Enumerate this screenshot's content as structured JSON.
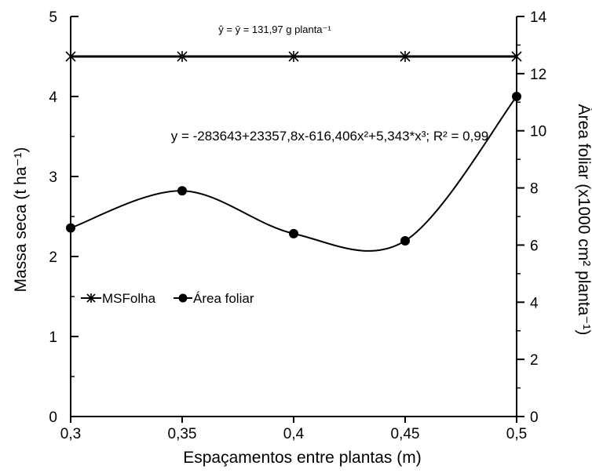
{
  "chart_data": {
    "type": "line",
    "title": "",
    "xlabel": "Espaçamentos entre plantas (m)",
    "ylabel_left": "Massa seca (t ha⁻¹)",
    "ylabel_right": "Área foliar (x1000 cm² planta⁻¹)",
    "x": [
      0.3,
      0.35,
      0.4,
      0.45,
      0.5
    ],
    "x_tick_labels": [
      "0,3",
      "0,35",
      "0,4",
      "0,45",
      "0,5"
    ],
    "xlim": [
      0.3,
      0.5
    ],
    "ylim_left": [
      0,
      5
    ],
    "y_left_ticks": [
      "0",
      "1",
      "2",
      "3",
      "4",
      "5"
    ],
    "ylim_right": [
      0,
      14
    ],
    "y_right_ticks": [
      "0",
      "2",
      "4",
      "6",
      "8",
      "10",
      "12",
      "14"
    ],
    "series": [
      {
        "name": "MSFolha",
        "axis": "left",
        "marker": "star",
        "values": [
          4.5,
          4.5,
          4.5,
          4.5,
          4.5
        ]
      },
      {
        "name": "Área foliar",
        "axis": "right",
        "marker": "circle",
        "values": [
          6.6,
          7.9,
          6.4,
          6.15,
          11.2
        ]
      }
    ],
    "annotations": {
      "msfolha_equation": "ŷ = ȳ = 131,97 g planta⁻¹",
      "area_equation": "y = -283643+23357,8x-616,406x²+5,343*x³; R² = 0,99"
    },
    "legend_placement": "center-left",
    "grid": false
  }
}
